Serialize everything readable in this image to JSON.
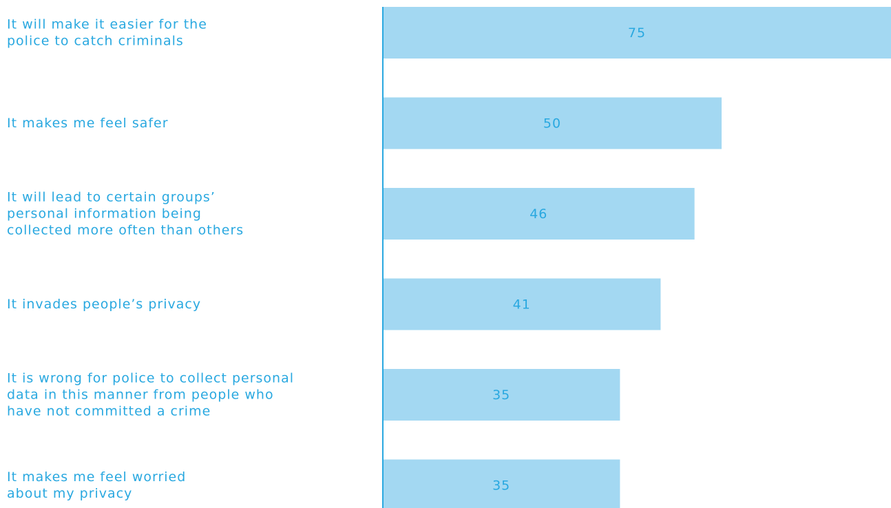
{
  "chart_data": {
    "type": "bar",
    "orientation": "horizontal",
    "categories": [
      "It will make it easier for the\npolice to catch criminals",
      "It makes me feel safer",
      "It will lead to certain groups’\npersonal information being\ncollected more often than others",
      "It invades people’s privacy",
      "It is wrong for police to collect personal\ndata in this manner from people who\nhave not committed a crime",
      "It makes me feel worried\nabout my privacy"
    ],
    "values": [
      75,
      50,
      46,
      41,
      35,
      35
    ],
    "color": "#a3d8f2",
    "label_color": "#29a8e0",
    "xlim": [
      0,
      75
    ]
  }
}
